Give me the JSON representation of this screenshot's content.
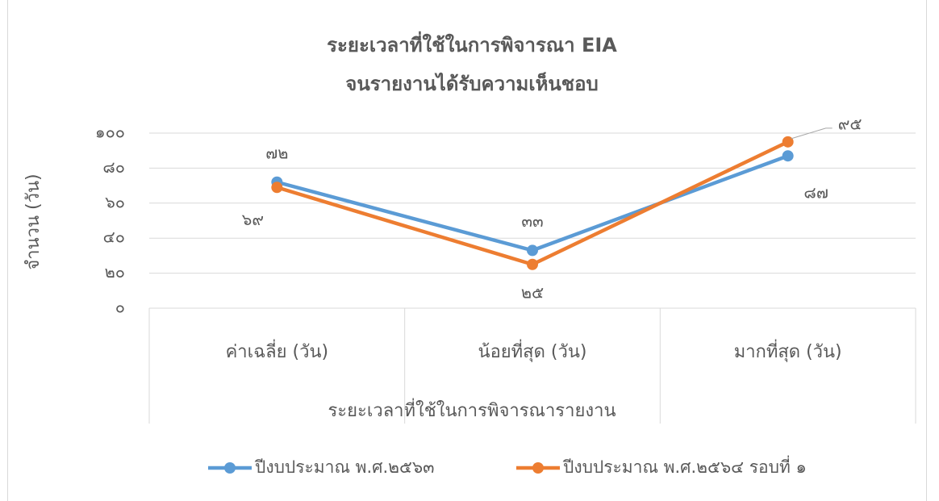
{
  "chart_data": {
    "type": "line",
    "title": [
      "ระยะเวลาที่ใช้ในการพิจารณา EIA",
      "จนรายงานได้รับความเห็นชอบ"
    ],
    "x_label": "ระยะเวลาที่ใช้ในการพิจารณารายงาน",
    "y_label": "จำนวน (วัน)",
    "categories": [
      "ค่าเฉลี่ย (วัน)",
      "น้อยที่สุด (วัน)",
      "มากที่สุด (วัน)"
    ],
    "series": [
      {
        "name": "ปีงบประมาณ พ.ศ.๒๕๖๓",
        "color": "#5b9bd5",
        "values": [
          72,
          33,
          87
        ],
        "value_labels": [
          "๗๒",
          "๓๓",
          "๘๗"
        ]
      },
      {
        "name": "ปีงบประมาณ พ.ศ.๒๕๖๔ รอบที่ ๑",
        "color": "#ed7d31",
        "values": [
          69,
          25,
          95
        ],
        "value_labels": [
          "๖๙",
          "๒๕",
          "๙๕"
        ]
      }
    ],
    "ylim": [
      0,
      100
    ],
    "yticks": [
      {
        "value": 0,
        "label": "๐"
      },
      {
        "value": 20,
        "label": "๒๐"
      },
      {
        "value": 40,
        "label": "๔๐"
      },
      {
        "value": 60,
        "label": "๖๐"
      },
      {
        "value": 80,
        "label": "๘๐"
      },
      {
        "value": 100,
        "label": "๑๐๐"
      }
    ],
    "grid": true,
    "legend": "bottom"
  }
}
